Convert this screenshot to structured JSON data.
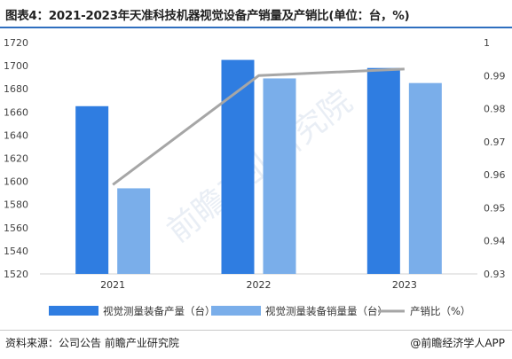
{
  "title": "图表4：2021-2023年天准科技机器视觉设备产销量及产销比(单位：台，%)",
  "source": "资料来源：公司公告 前瞻产业研究院",
  "credit": "@前瞻经济学人APP",
  "watermark": "前瞻产业研究院",
  "colors": {
    "production": "#2f7de1",
    "sales": "#7aaeea",
    "ratio": "#a6a6a6",
    "axis": "#d0d0d0",
    "title_rule": "#2f6fbf"
  },
  "chart_data": {
    "type": "bar",
    "categories": [
      "2021",
      "2022",
      "2023"
    ],
    "series": [
      {
        "name": "视觉测量装备产量（台）",
        "type": "bar",
        "axis": "left",
        "values": [
          1665,
          1705,
          1698
        ]
      },
      {
        "name": "视觉测量装备销量量（台）",
        "type": "bar",
        "axis": "left",
        "values": [
          1594,
          1689,
          1685
        ]
      },
      {
        "name": "产销比（%）",
        "type": "line",
        "axis": "right",
        "values": [
          0.957,
          0.99,
          0.992
        ]
      }
    ],
    "y_left": {
      "min": 1520,
      "max": 1720,
      "step": 20
    },
    "y_right": {
      "min": 0.93,
      "max": 1.0,
      "step": 0.01,
      "tick_labels": [
        "0.93",
        "0.94",
        "0.95",
        "0.96",
        "0.97",
        "0.98",
        "0.99",
        "1"
      ]
    },
    "legend_position": "bottom",
    "grid": false
  }
}
